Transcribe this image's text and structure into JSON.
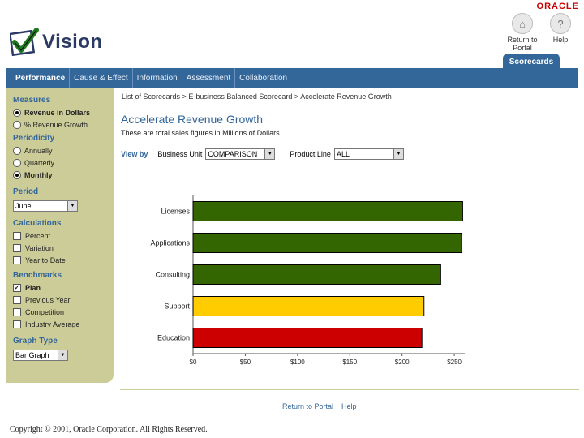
{
  "header": {
    "app_name": "Vision",
    "vendor": "ORACLE",
    "return_label": "Return to Portal",
    "help_label": "Help",
    "scorecards_tab": "Scorecards"
  },
  "nav": {
    "tabs": [
      "Performance",
      "Cause & Effect",
      "Information",
      "Assessment",
      "Collaboration"
    ],
    "active_index": 0
  },
  "sidebar": {
    "measures_heading": "Measures",
    "measures": [
      {
        "label": "Revenue in Dollars",
        "selected": true
      },
      {
        "label": "% Revenue Growth",
        "selected": false
      }
    ],
    "periodicity_heading": "Periodicity",
    "periodicity": [
      {
        "label": "Annually",
        "selected": false
      },
      {
        "label": "Quarterly",
        "selected": false
      },
      {
        "label": "Monthly",
        "selected": true
      }
    ],
    "period_heading": "Period",
    "period_value": "June",
    "calculations_heading": "Calculations",
    "calculations": [
      {
        "label": "Percent",
        "checked": false
      },
      {
        "label": "Variation",
        "checked": false
      },
      {
        "label": "Year to Date",
        "checked": false
      }
    ],
    "benchmarks_heading": "Benchmarks",
    "benchmarks": [
      {
        "label": "Plan",
        "checked": true
      },
      {
        "label": "Previous Year",
        "checked": false
      },
      {
        "label": "Competition",
        "checked": false
      },
      {
        "label": "Industry Average",
        "checked": false
      }
    ],
    "graph_type_heading": "Graph Type",
    "graph_type_value": "Bar Graph"
  },
  "main": {
    "breadcrumb": [
      "List of Scorecards",
      "E-business Balanced Scorecard",
      "Accelerate Revenue Growth"
    ],
    "breadcrumb_sep": ">",
    "title": "Accelerate Revenue Growth",
    "description": "These are total sales figures in Millions of Dollars",
    "view_by_label": "View by",
    "business_unit_label": "Business Unit",
    "business_unit_value": "COMPARISON",
    "product_line_label": "Product Line",
    "product_line_value": "ALL"
  },
  "chart_data": {
    "type": "bar",
    "orientation": "horizontal",
    "categories": [
      "Licenses",
      "Applications",
      "Consulting",
      "Support",
      "Education"
    ],
    "values": [
      258,
      257,
      237,
      221,
      219
    ],
    "colors": [
      "#336600",
      "#336600",
      "#336600",
      "#ffcc00",
      "#cc0000"
    ],
    "x_ticks": [
      "$0",
      "$50",
      "$100",
      "$150",
      "$200",
      "$250"
    ],
    "xlim": [
      0,
      260
    ]
  },
  "footer": {
    "return_label": "Return to Portal",
    "help_label": "Help",
    "copyright": "Copyright © 2001, Oracle Corporation. All Rights Reserved."
  }
}
